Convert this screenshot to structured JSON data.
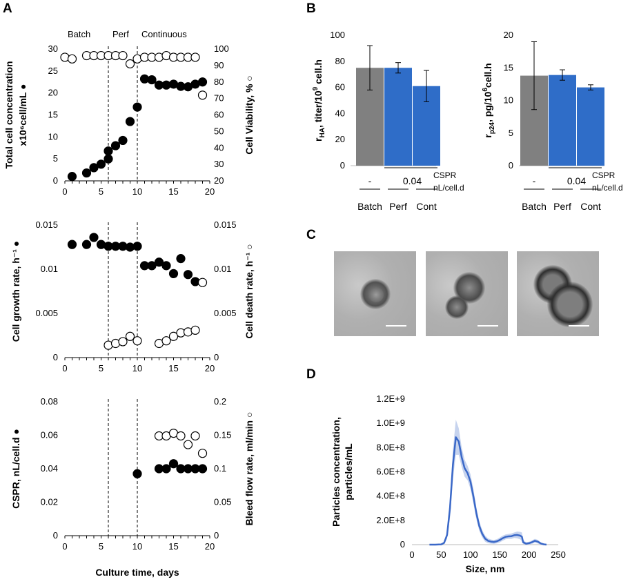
{
  "panel_labels": {
    "a": "A",
    "b": "B",
    "c": "C",
    "d": "D"
  },
  "phases": {
    "batch": "Batch",
    "perf": "Perf",
    "continuous": "Continuous"
  },
  "chart_data": [
    {
      "id": "A1",
      "type": "scatter",
      "ylabel_left": "Total cell concentration",
      "ylabel_left_line2": "x10⁶cell/mL ●",
      "ylabel_right": "Cell Viability, % ○",
      "ylim_left": [
        0,
        30
      ],
      "yticks_left": [
        "0",
        "5",
        "10",
        "15",
        "20",
        "25",
        "30"
      ],
      "ylim_right": [
        20,
        100
      ],
      "yticks_right": [
        "20",
        "30",
        "40",
        "50",
        "60",
        "70",
        "80",
        "90",
        "100"
      ],
      "xlim": [
        0,
        20
      ],
      "xticks": [
        "0",
        "5",
        "10",
        "15",
        "20"
      ],
      "vlines": [
        6,
        10
      ],
      "series": [
        {
          "name": "Total cell concentration",
          "marker": "filled",
          "axis": "left",
          "x": [
            1,
            3,
            4,
            5,
            6,
            6,
            7,
            8,
            9,
            10,
            11,
            12,
            13,
            14,
            15,
            16,
            17,
            18,
            19
          ],
          "y": [
            1.0,
            1.8,
            3.0,
            3.8,
            5.0,
            6.8,
            8.0,
            9.2,
            13.5,
            16.8,
            23.2,
            23.0,
            21.8,
            21.8,
            22.0,
            21.5,
            21.4,
            22.0,
            22.5
          ]
        },
        {
          "name": "Cell Viability",
          "marker": "open",
          "axis": "right",
          "x": [
            0,
            1,
            3,
            4,
            5,
            6,
            7,
            8,
            9,
            10,
            11,
            12,
            13,
            14,
            15,
            16,
            17,
            18,
            19
          ],
          "y": [
            95,
            94,
            96,
            96,
            96,
            96,
            96,
            96,
            91,
            94,
            95,
            95,
            95,
            96,
            95,
            95,
            95,
            95,
            72
          ]
        }
      ]
    },
    {
      "id": "A2",
      "type": "scatter",
      "ylabel_left": "Cell growth rate, h⁻¹ ●",
      "ylabel_right": "Cell death rate, h⁻¹ ○",
      "ylim_left": [
        0,
        0.015
      ],
      "yticks_left": [
        "0",
        "0.005",
        "0.01",
        "0.015"
      ],
      "ylim_right": [
        0,
        0.015
      ],
      "yticks_right": [
        "0",
        "0.005",
        "0.01",
        "0.015"
      ],
      "xlim": [
        0,
        20
      ],
      "xticks": [
        "0",
        "5",
        "10",
        "15",
        "20"
      ],
      "vlines": [
        6,
        10
      ],
      "series": [
        {
          "name": "Cell growth rate",
          "marker": "filled",
          "axis": "left",
          "x": [
            1,
            3,
            4,
            5,
            6,
            7,
            8,
            9,
            10,
            11,
            12,
            13,
            14,
            15,
            16,
            17,
            18
          ],
          "y": [
            0.0128,
            0.0128,
            0.0136,
            0.0128,
            0.0126,
            0.0126,
            0.0126,
            0.0125,
            0.0126,
            0.0104,
            0.0104,
            0.0108,
            0.0104,
            0.0095,
            0.0112,
            0.0094,
            0.0086
          ]
        },
        {
          "name": "Cell death rate",
          "marker": "open",
          "axis": "right",
          "x": [
            6,
            7,
            8,
            9,
            10,
            13,
            14,
            15,
            16,
            17,
            18,
            19
          ],
          "y": [
            0.0014,
            0.0016,
            0.0018,
            0.0024,
            0.0019,
            0.0016,
            0.0019,
            0.0024,
            0.0028,
            0.0029,
            0.0031,
            0.0085
          ]
        }
      ]
    },
    {
      "id": "A3",
      "type": "scatter",
      "ylabel_left": "CSPR, nL/cell.d ●",
      "ylabel_right": "Bleed flow rate, ml/min ○",
      "xlabel": "Culture time, days",
      "ylim_left": [
        0,
        0.08
      ],
      "yticks_left": [
        "0",
        "0.02",
        "0.04",
        "0.06",
        "0.08"
      ],
      "ylim_right": [
        0,
        0.2
      ],
      "yticks_right": [
        "0",
        "0.05",
        "0.1",
        "0.15",
        "0.2"
      ],
      "xlim": [
        0,
        20
      ],
      "xticks": [
        "0",
        "5",
        "10",
        "15",
        "20"
      ],
      "vlines": [
        6,
        10
      ],
      "series": [
        {
          "name": "CSPR",
          "marker": "filled",
          "axis": "left",
          "x": [
            10,
            13,
            14,
            15,
            16,
            17,
            18,
            19
          ],
          "y": [
            0.037,
            0.04,
            0.04,
            0.043,
            0.04,
            0.04,
            0.04,
            0.04
          ]
        },
        {
          "name": "Bleed flow rate",
          "marker": "open",
          "axis": "right",
          "x": [
            13,
            14,
            15,
            16,
            17,
            18,
            19
          ],
          "y": [
            0.149,
            0.149,
            0.153,
            0.149,
            0.136,
            0.149,
            0.123
          ]
        }
      ]
    },
    {
      "id": "B1",
      "type": "bar",
      "ylabel_prefix": "r",
      "ylabel_sub": "HA",
      "ylabel_mid": ", titer/10",
      "ylabel_sup": "9",
      "ylabel_end": " cell.h",
      "ylim": [
        0,
        100
      ],
      "yticks": [
        "0",
        "20",
        "40",
        "60",
        "80",
        "100"
      ],
      "categories": [
        "Batch",
        "Perf",
        "Cont"
      ],
      "values": [
        75,
        75,
        61
      ],
      "errors": [
        17,
        4,
        12
      ],
      "colors": [
        "#808080",
        "#2f6dc8",
        "#2f6dc8"
      ],
      "cspr_values": [
        "-",
        "0.04"
      ],
      "cspr_label": "CSPR",
      "cspr_unit": "nL/cell.d"
    },
    {
      "id": "B2",
      "type": "bar",
      "ylabel_prefix": "r",
      "ylabel_sub": "p24",
      "ylabel_mid": ", pg/10",
      "ylabel_sup": "6",
      "ylabel_end": "cell.h",
      "ylim": [
        0,
        20
      ],
      "yticks": [
        "0",
        "5",
        "10",
        "15",
        "20"
      ],
      "categories": [
        "Batch",
        "Perf",
        "Cont"
      ],
      "values": [
        13.8,
        13.9,
        12.0
      ],
      "errors": [
        5.2,
        0.8,
        0.4
      ],
      "colors": [
        "#808080",
        "#2f6dc8",
        "#2f6dc8"
      ],
      "cspr_values": [
        "-",
        "0.04"
      ],
      "cspr_label": "CSPR",
      "cspr_unit": "nL/cell.d"
    },
    {
      "id": "D",
      "type": "line",
      "ylabel": "Particles concentration,",
      "ylabel_line2": "particles/mL",
      "xlabel": "Size, nm",
      "ylim": [
        0,
        1200000000.0
      ],
      "yticks": [
        "0",
        "2.0E+8",
        "4.0E+8",
        "6.0E+8",
        "8.0E+8",
        "1.0E+9",
        "1.2E+9"
      ],
      "xlim": [
        0,
        250
      ],
      "xticks": [
        "0",
        "50",
        "100",
        "150",
        "200",
        "250"
      ],
      "x": [
        30,
        40,
        50,
        55,
        60,
        65,
        70,
        75,
        80,
        85,
        90,
        95,
        100,
        105,
        110,
        115,
        120,
        125,
        130,
        135,
        140,
        145,
        150,
        155,
        160,
        165,
        170,
        175,
        180,
        185,
        188,
        190,
        195,
        200,
        205,
        210,
        215,
        220,
        225,
        230
      ],
      "y": [
        0,
        0,
        2000000.0,
        15000000.0,
        80000000.0,
        300000000.0,
        660000000.0,
        885000000.0,
        850000000.0,
        720000000.0,
        630000000.0,
        590000000.0,
        520000000.0,
        400000000.0,
        260000000.0,
        155000000.0,
        90000000.0,
        50000000.0,
        32000000.0,
        25000000.0,
        22000000.0,
        28000000.0,
        38000000.0,
        53000000.0,
        64000000.0,
        68000000.0,
        70000000.0,
        78000000.0,
        80000000.0,
        74000000.0,
        65000000.0,
        20000000.0,
        8000000.0,
        12000000.0,
        20000000.0,
        32000000.0,
        25000000.0,
        10000000.0,
        3000000.0,
        0
      ],
      "band_upper": [
        0,
        0,
        4000000.0,
        25000000.0,
        110000000.0,
        380000000.0,
        780000000.0,
        1030000000.0,
        960000000.0,
        800000000.0,
        700000000.0,
        650000000.0,
        580000000.0,
        460000000.0,
        310000000.0,
        195000000.0,
        120000000.0,
        75000000.0,
        52000000.0,
        42000000.0,
        38000000.0,
        45000000.0,
        58000000.0,
        74000000.0,
        84000000.0,
        88000000.0,
        92000000.0,
        100000000.0,
        108000000.0,
        105000000.0,
        100000000.0,
        40000000.0,
        20000000.0,
        24000000.0,
        34000000.0,
        48000000.0,
        40000000.0,
        20000000.0,
        8000000.0,
        0
      ],
      "band_lower": [
        0,
        0,
        0,
        5000000.0,
        50000000.0,
        220000000.0,
        540000000.0,
        740000000.0,
        740000000.0,
        640000000.0,
        560000000.0,
        530000000.0,
        460000000.0,
        340000000.0,
        210000000.0,
        115000000.0,
        60000000.0,
        25000000.0,
        12000000.0,
        8000000.0,
        6000000.0,
        11000000.0,
        18000000.0,
        32000000.0,
        44000000.0,
        48000000.0,
        48000000.0,
        56000000.0,
        52000000.0,
        43000000.0,
        30000000.0,
        5000000.0,
        0,
        0,
        6000000.0,
        16000000.0,
        10000000.0,
        0,
        0,
        0
      ]
    }
  ]
}
